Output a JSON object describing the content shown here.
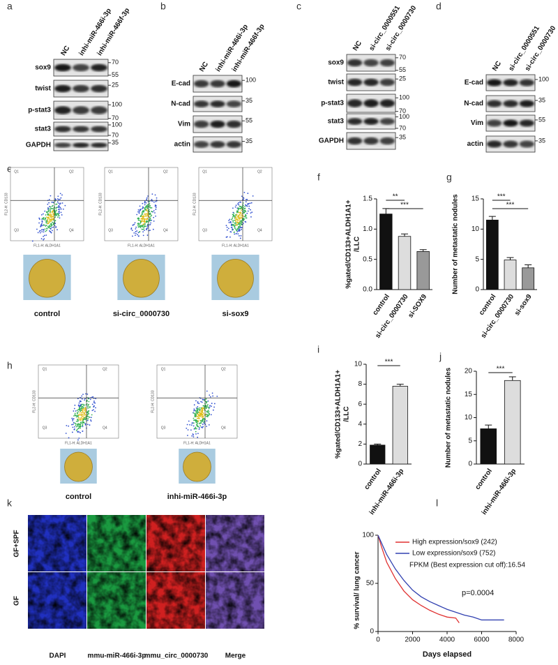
{
  "blots": [
    {
      "letter": "a",
      "lanes": [
        "NC",
        "inhi-miR-466i-3p",
        "inhi-miR-466f-3p"
      ],
      "rows": [
        {
          "label": "sox9",
          "markers": [
            70,
            55
          ]
        },
        {
          "label": "twist",
          "markers": [
            25
          ]
        },
        {
          "label": "p-stat3",
          "markers": [
            100,
            70
          ]
        },
        {
          "label": "stat3",
          "markers": [
            100,
            70
          ]
        },
        {
          "label": "GAPDH",
          "markers": [
            35
          ]
        }
      ]
    },
    {
      "letter": "b",
      "lanes": [
        "NC",
        "inhi-miR-466i-3p",
        "inhi-miR-466f-3p"
      ],
      "rows": [
        {
          "label": "E-cad",
          "markers": [
            100
          ]
        },
        {
          "label": "N-cad",
          "markers": [
            35
          ]
        },
        {
          "label": "Vim",
          "markers": [
            55
          ]
        },
        {
          "label": "actin",
          "markers": [
            35
          ]
        }
      ]
    },
    {
      "letter": "c",
      "lanes": [
        "NC",
        "si-circ_0000551",
        "si-circ_0000730"
      ],
      "rows": [
        {
          "label": "sox9",
          "markers": [
            70,
            55
          ]
        },
        {
          "label": "twist",
          "markers": [
            25
          ]
        },
        {
          "label": "p-stat3",
          "markers": [
            100,
            70
          ]
        },
        {
          "label": "stat3",
          "markers": [
            100,
            70
          ]
        },
        {
          "label": "GAPDH",
          "markers": [
            35
          ]
        }
      ]
    },
    {
      "letter": "d",
      "lanes": [
        "NC",
        "si-circ_0000551",
        "si-circ_0000730"
      ],
      "rows": [
        {
          "label": "E-cad",
          "markers": [
            100
          ]
        },
        {
          "label": "N-cad",
          "markers": [
            35
          ]
        },
        {
          "label": "Vim",
          "markers": [
            55
          ]
        },
        {
          "label": "actin",
          "markers": [
            35
          ]
        }
      ]
    }
  ],
  "flow_axis_labels": {
    "x": "FL1-H: ALDH1A1",
    "y": "FL2-H: CD133"
  },
  "quadrants": [
    "Q1",
    "Q2",
    "Q3",
    "Q4"
  ],
  "flow_panels": [
    {
      "letter": "e",
      "samples": [
        "control",
        "si-circ_0000730",
        "si-sox9"
      ]
    },
    {
      "letter": "h",
      "samples": [
        "control",
        "inhi-miR-466i-3p"
      ]
    }
  ],
  "immunofluorescence": {
    "letter": "k",
    "rows": [
      "GF+SPF",
      "GF"
    ],
    "columns": [
      "DAPI",
      "mmu-miR-466i-3p",
      "mmu_circ_0000730",
      "Merge"
    ]
  },
  "chart_data": [
    {
      "type": "bar",
      "letter": "f",
      "ylabel": [
        "%gated/CD133+ALDH1A1+",
        "/LLC"
      ],
      "categories": [
        "control",
        "si-circ_0000730",
        "si-SOX9"
      ],
      "values": [
        1.25,
        0.88,
        0.63
      ],
      "errors": [
        0.09,
        0.04,
        0.03
      ],
      "colors": [
        "#111111",
        "#dddddd",
        "#999999"
      ],
      "ylim": [
        0,
        1.5
      ],
      "yticks": [
        {
          "value": 0,
          "label": "0.0"
        },
        {
          "value": 0.5,
          "label": "0.5"
        },
        {
          "value": 1,
          "label": "1.0"
        },
        {
          "value": 1.5,
          "label": "1.5"
        }
      ],
      "annotations": [
        "**",
        "***"
      ]
    },
    {
      "type": "bar",
      "letter": "g",
      "ylabel": "Number of metastatic nodules",
      "categories": [
        "control",
        "si-circ_0000730",
        "si-sox9"
      ],
      "values": [
        11.5,
        4.9,
        3.6
      ],
      "errors": [
        0.6,
        0.4,
        0.5
      ],
      "colors": [
        "#111111",
        "#dddddd",
        "#999999"
      ],
      "ylim": [
        0,
        15
      ],
      "yticks": [
        0,
        5,
        10,
        15
      ],
      "annotations": [
        "***",
        "***"
      ]
    },
    {
      "type": "bar",
      "letter": "i",
      "ylabel": [
        "%gated/CD133+ALDH1A1+",
        "/LLC"
      ],
      "categories": [
        "control",
        "inhi-miR-466i-3p"
      ],
      "values": [
        1.9,
        7.8
      ],
      "errors": [
        0.1,
        0.2
      ],
      "colors": [
        "#111111",
        "#dddddd"
      ],
      "ylim": [
        0,
        10
      ],
      "yticks": [
        0,
        2,
        4,
        6,
        8,
        10
      ],
      "annotations": [
        "***"
      ]
    },
    {
      "type": "bar",
      "letter": "j",
      "ylabel": "Number of metastatic nodules",
      "categories": [
        "control",
        "inhi-miR-466i-3p"
      ],
      "values": [
        7.6,
        18
      ],
      "errors": [
        0.8,
        0.8
      ],
      "colors": [
        "#111111",
        "#dddddd"
      ],
      "ylim": [
        0,
        20
      ],
      "yticks": [
        0,
        5,
        10,
        15,
        20
      ],
      "annotations": [
        "***"
      ]
    },
    {
      "type": "line",
      "letter": "l",
      "ylabel": "% survival/ lung cancer",
      "xlabel": "Days elapsed",
      "xlim": [
        0,
        8000
      ],
      "xticks": [
        0,
        2000,
        4000,
        6000,
        8000
      ],
      "ylim": [
        0,
        100
      ],
      "yticks": [
        0,
        50,
        100
      ],
      "series": [
        {
          "name": "High expression/sox9 (242)",
          "color": "#e03030",
          "x": [
            0,
            200,
            500,
            1000,
            1500,
            2000,
            2500,
            3000,
            3500,
            4000,
            4500,
            4700
          ],
          "values": [
            100,
            88,
            72,
            55,
            42,
            33,
            27,
            22,
            18,
            15,
            14,
            9
          ]
        },
        {
          "name": "Low expression/sox9 (752)",
          "color": "#3040b0",
          "x": [
            0,
            200,
            500,
            1000,
            1500,
            2000,
            2500,
            3000,
            3500,
            4000,
            4500,
            5000,
            5500,
            6000,
            7000,
            7300
          ],
          "values": [
            100,
            92,
            80,
            65,
            53,
            43,
            36,
            31,
            27,
            23,
            20,
            17,
            15,
            12,
            12,
            12
          ]
        }
      ],
      "annotations": [
        "FPKM (Best expression cut off):16.54",
        "p=0.0004"
      ]
    }
  ]
}
